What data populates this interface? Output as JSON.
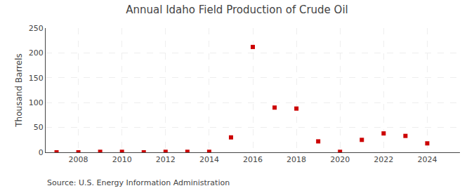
{
  "chart_data": {
    "type": "scatter",
    "title": "Annual Idaho Field Production of Crude Oil",
    "ylabel": "Thousand Barrels",
    "annotations": [
      "Source: U.S. Energy Information Administration"
    ],
    "x": [
      2007,
      2008,
      2009,
      2010,
      2011,
      2012,
      2013,
      2014,
      2015,
      2016,
      2017,
      2018,
      2019,
      2020,
      2021,
      2022,
      2023,
      2024
    ],
    "values": [
      0,
      0,
      1,
      1,
      0,
      1,
      1,
      1,
      30,
      212,
      90,
      88,
      22,
      1,
      25,
      38,
      33,
      18
    ],
    "color": "#cc0000",
    "marker": "square",
    "xlim": [
      2006.5,
      2025.5
    ],
    "xticks": [
      2008,
      2010,
      2012,
      2014,
      2016,
      2018,
      2020,
      2022,
      2024
    ],
    "ylim": [
      0,
      250
    ],
    "yticks": [
      0,
      50,
      100,
      150,
      200,
      250
    ],
    "grid": true
  }
}
